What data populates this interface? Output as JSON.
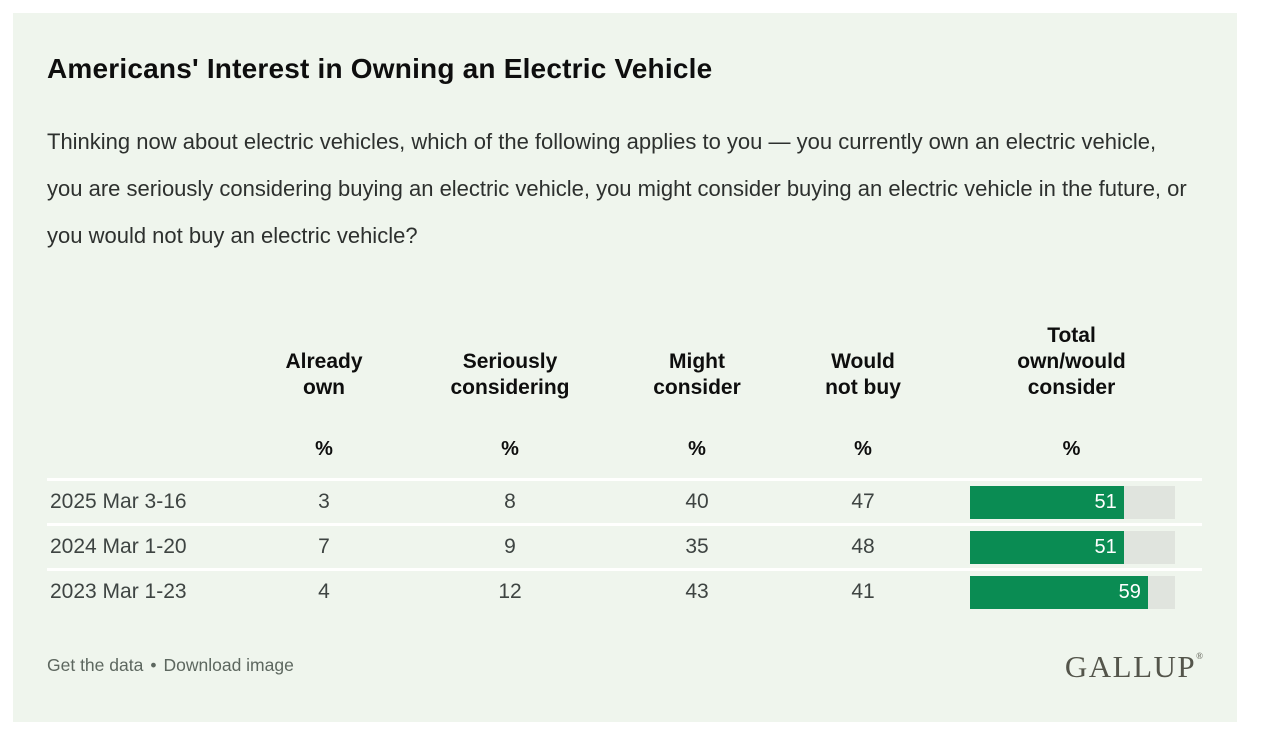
{
  "title": "Americans' Interest in Owning an Electric Vehicle",
  "question": "Thinking now about electric vehicles, which of the following applies to you — you currently own an electric vehicle, you are seriously considering buying an electric vehicle, you might consider buying an electric vehicle in the future, or you would not buy an electric vehicle?",
  "chart_data": {
    "type": "table",
    "title": "Americans' Interest in Owning an Electric Vehicle",
    "unit": "%",
    "columns": [
      "Already own",
      "Seriously considering",
      "Might consider",
      "Would not buy",
      "Total own/would consider"
    ],
    "rows": [
      {
        "label": "2025 Mar 3-16",
        "values": [
          3,
          8,
          40,
          47
        ],
        "total": 51
      },
      {
        "label": "2024 Mar 1-20",
        "values": [
          7,
          9,
          35,
          48
        ],
        "total": 51
      },
      {
        "label": "2023 Mar 1-23",
        "values": [
          4,
          12,
          43,
          41
        ],
        "total": 59
      }
    ],
    "bar_column": "Total own/would consider",
    "bar_axis_max": 68,
    "bar_color": "#0a8c53",
    "bar_track_color": "#e0e4de"
  },
  "display": {
    "headers": [
      "Already\nown",
      "Seriously\nconsidering",
      "Might\nconsider",
      "Would\nnot buy",
      "Total\nown/would\nconsider"
    ],
    "units": [
      "%",
      "%",
      "%",
      "%",
      "%"
    ]
  },
  "footer": {
    "link_get_data": "Get the data",
    "link_download": "Download image",
    "separator": "•",
    "logo": "GALLUP",
    "logo_reg": "®"
  }
}
